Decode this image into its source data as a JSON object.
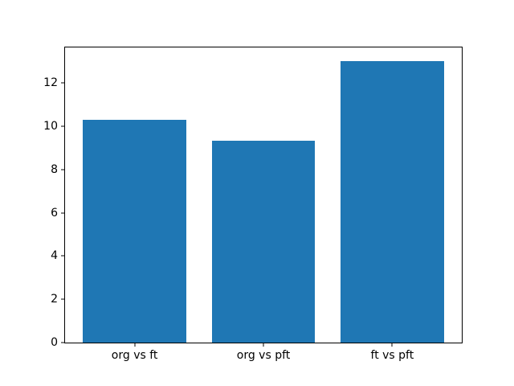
{
  "chart_data": {
    "type": "bar",
    "title": "",
    "xlabel": "",
    "ylabel": "",
    "categories": [
      "org vs ft",
      "org vs pft",
      "ft vs pft"
    ],
    "values": [
      10.3,
      9.35,
      13.0
    ],
    "bar_color": "#1f77b4",
    "ylim": [
      0,
      13.65
    ],
    "yticks": [
      0,
      2,
      4,
      6,
      8,
      10,
      12
    ],
    "xlim": [
      -0.54,
      2.54
    ],
    "bar_width": 0.8,
    "grid": false,
    "legend": "none",
    "spine_color": "#000000",
    "background": "#ffffff"
  }
}
